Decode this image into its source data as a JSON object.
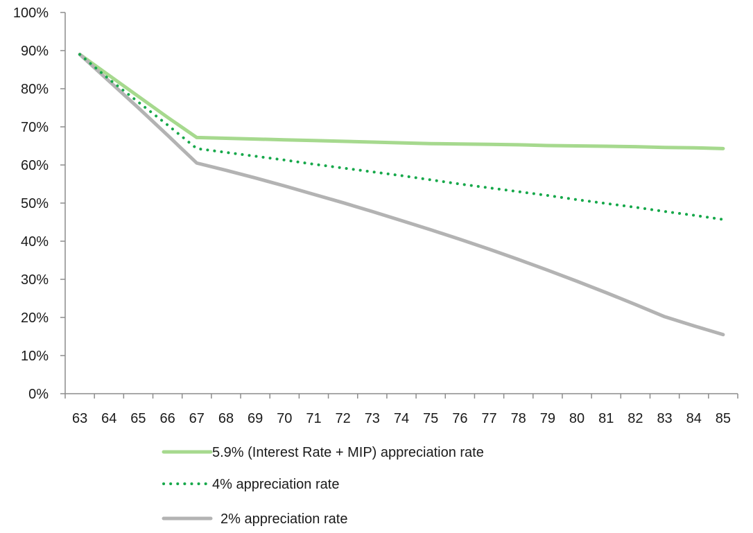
{
  "chart_data": {
    "type": "line",
    "x": [
      63,
      64,
      65,
      66,
      67,
      68,
      69,
      70,
      71,
      72,
      73,
      74,
      75,
      76,
      77,
      78,
      79,
      80,
      81,
      82,
      83,
      84,
      85
    ],
    "x_tick_labels": [
      "63",
      "64",
      "65",
      "66",
      "67",
      "68",
      "69",
      "70",
      "71",
      "72",
      "73",
      "74",
      "75",
      "76",
      "77",
      "78",
      "79",
      "80",
      "81",
      "82",
      "83",
      "84",
      "85"
    ],
    "ylim": [
      0,
      100
    ],
    "y_tick_values": [
      0,
      10,
      20,
      30,
      40,
      50,
      60,
      70,
      80,
      90,
      100
    ],
    "y_tick_labels": [
      "0%",
      "10%",
      "20%",
      "30%",
      "40%",
      "50%",
      "60%",
      "70%",
      "80%",
      "90%",
      "100%"
    ],
    "grid": false,
    "legend_position": "bottom",
    "series": [
      {
        "name": "5.9% (Interest Rate + MIP) appreciation rate",
        "color": "#a6d98e",
        "style": "solid",
        "values": [
          89,
          83.5,
          78,
          72.5,
          67.2,
          67.0,
          66.8,
          66.6,
          66.4,
          66.2,
          66.0,
          65.8,
          65.6,
          65.5,
          65.4,
          65.3,
          65.1,
          65.0,
          64.9,
          64.8,
          64.6,
          64.5,
          64.3
        ]
      },
      {
        "name": "4% appreciation rate",
        "color": "#16a84a",
        "style": "dotted",
        "values": [
          89,
          82.5,
          76.5,
          70.5,
          64.3,
          63.3,
          62.3,
          61.3,
          60.2,
          59.2,
          58.2,
          57.2,
          56.1,
          55.0,
          54.0,
          53.0,
          52.0,
          50.9,
          49.9,
          48.9,
          47.8,
          46.8,
          45.7
        ]
      },
      {
        "name": "2% appreciation rate",
        "color": "#b3b3b3",
        "style": "solid",
        "values": [
          89,
          82,
          75,
          67.8,
          60.5,
          58.6,
          56.6,
          54.5,
          52.3,
          50.1,
          47.8,
          45.4,
          43.0,
          40.5,
          37.9,
          35.2,
          32.4,
          29.5,
          26.5,
          23.4,
          20.2,
          17.8,
          15.5
        ]
      }
    ]
  }
}
